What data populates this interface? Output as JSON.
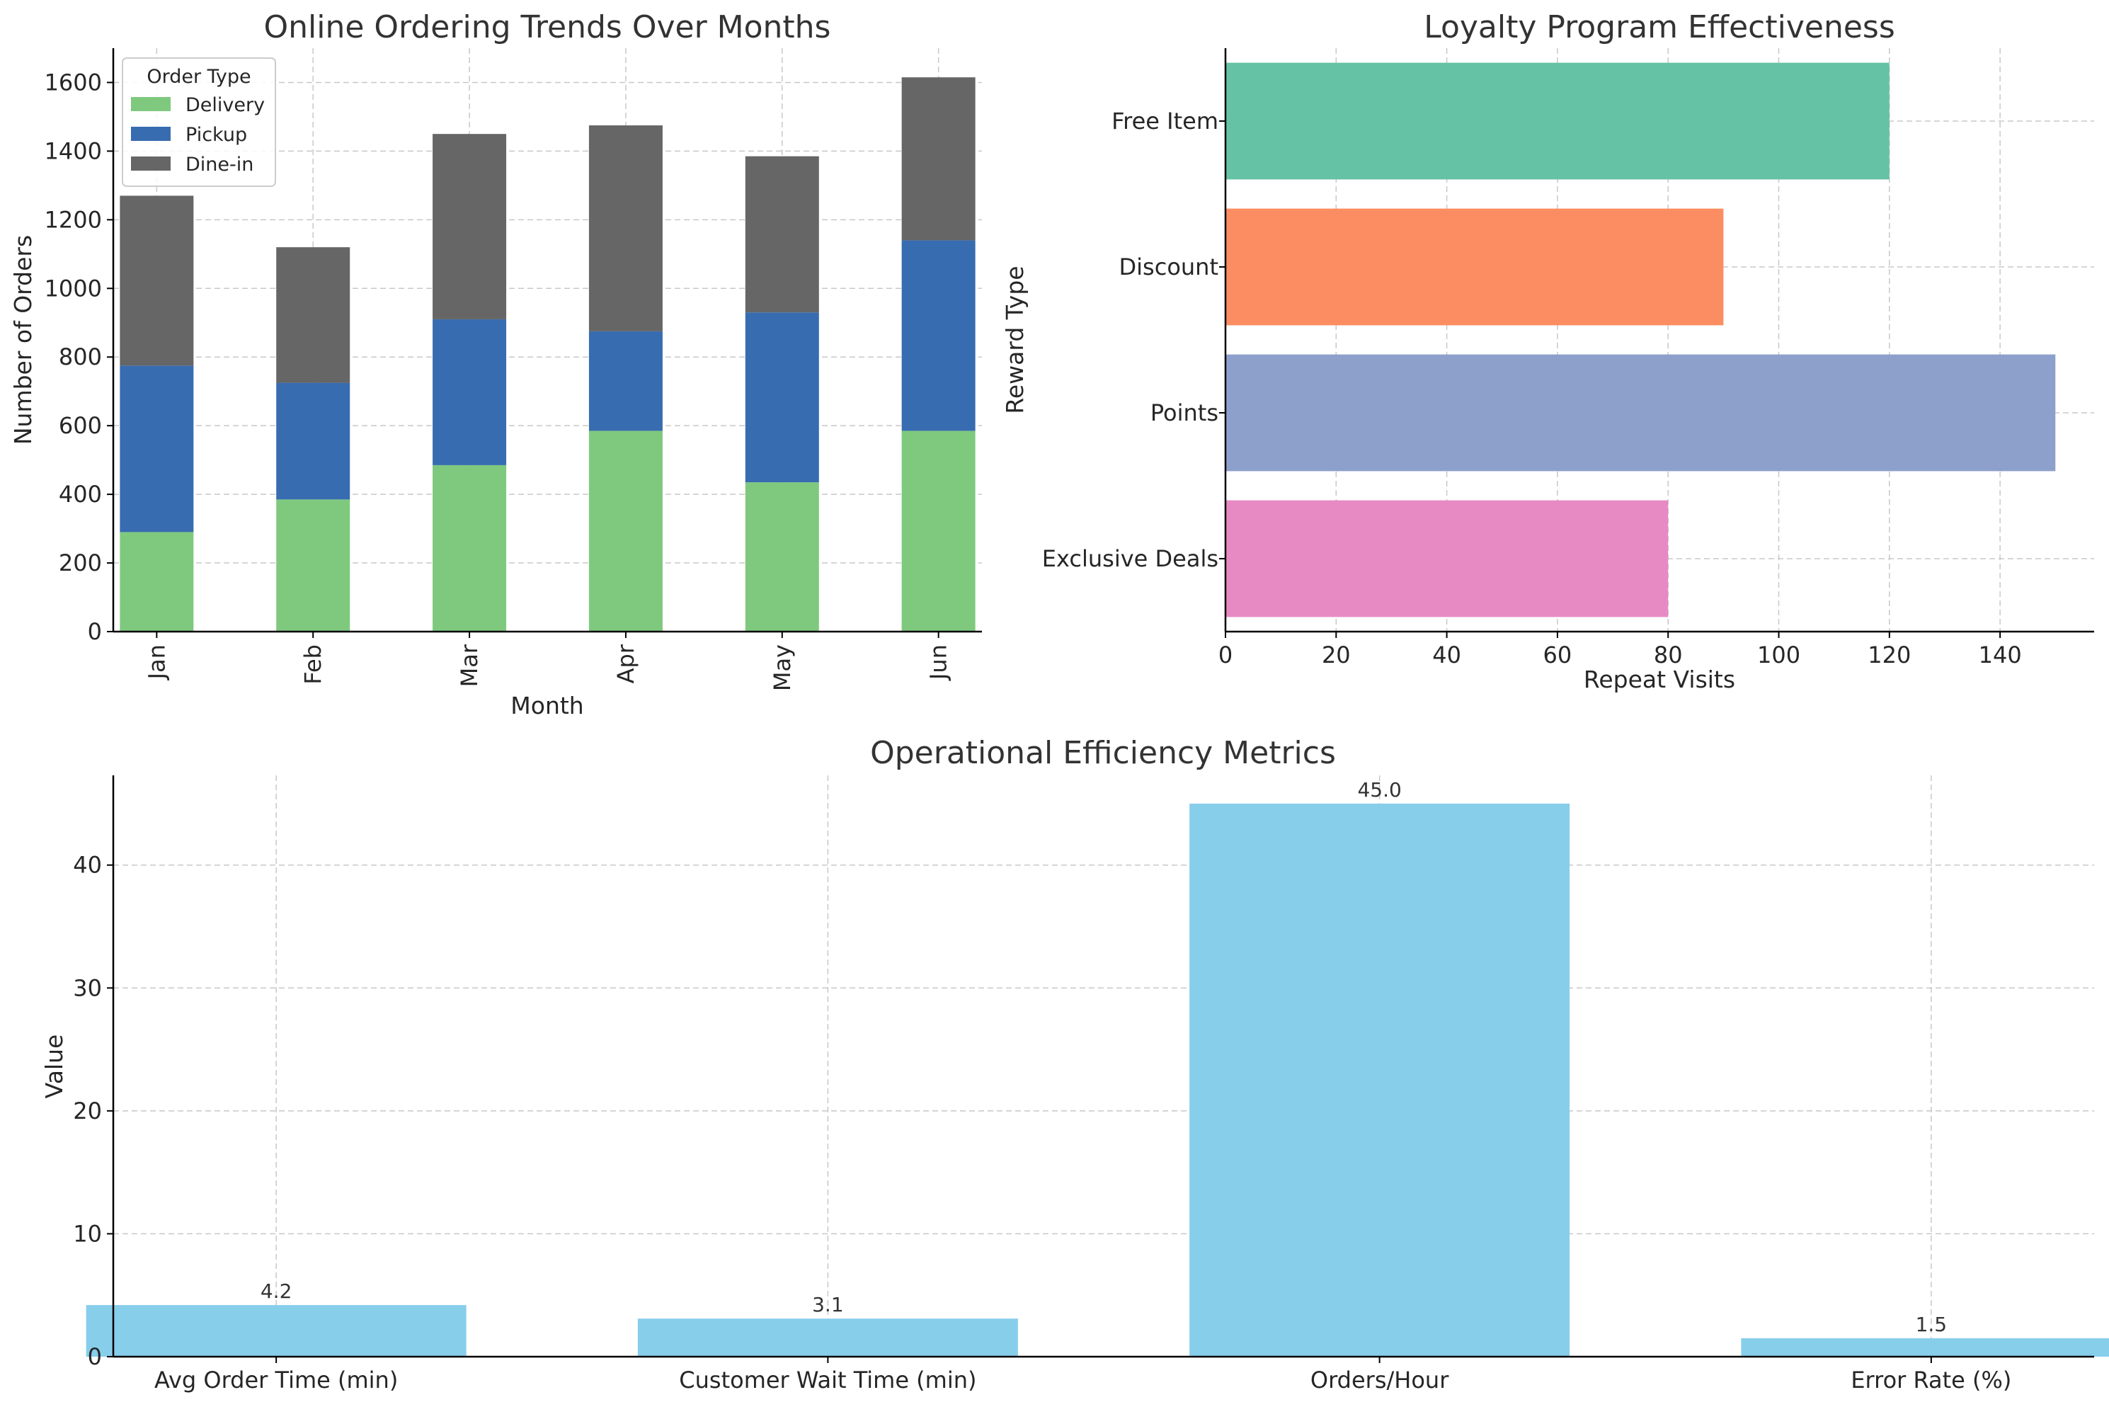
{
  "chart_data": [
    {
      "id": "ordering",
      "type": "bar",
      "stacked": true,
      "title": "Online Ordering Trends Over Months",
      "xlabel": "Month",
      "ylabel": "Number of Orders",
      "categories": [
        "Jan",
        "Feb",
        "Mar",
        "Apr",
        "May",
        "Jun"
      ],
      "series": [
        {
          "name": "Delivery",
          "color": "#7fc97f",
          "values": [
            290,
            385,
            485,
            585,
            435,
            585
          ]
        },
        {
          "name": "Pickup",
          "color": "#386cb0",
          "values": [
            485,
            340,
            425,
            290,
            495,
            555
          ]
        },
        {
          "name": "Dine-in",
          "color": "#666666",
          "values": [
            495,
            395,
            540,
            600,
            455,
            475
          ]
        }
      ],
      "ylim": [
        0,
        1700
      ],
      "yticks": [
        0,
        200,
        400,
        600,
        800,
        1000,
        1200,
        1400,
        1600
      ],
      "legend": {
        "title": "Order Type",
        "placement": "top-left"
      },
      "grid": true
    },
    {
      "id": "loyalty",
      "type": "bar",
      "orientation": "horizontal",
      "title": "Loyalty Program Effectiveness",
      "xlabel": "Repeat Visits",
      "ylabel": "Reward Type",
      "categories": [
        "Free Item",
        "Discount",
        "Points",
        "Exclusive Deals"
      ],
      "values": [
        120,
        90,
        150,
        80
      ],
      "colors": [
        "#66c2a5",
        "#fc8d62",
        "#8da0cb",
        "#e78ac3"
      ],
      "xlim": [
        0,
        157
      ],
      "xticks": [
        0,
        20,
        40,
        60,
        80,
        100,
        120,
        140
      ],
      "grid": true
    },
    {
      "id": "efficiency",
      "type": "bar",
      "title": "Operational Efficiency Metrics",
      "xlabel": "",
      "ylabel": "Value",
      "categories": [
        "Avg Order Time (min)",
        "Customer Wait Time (min)",
        "Orders/Hour",
        "Error Rate (%)"
      ],
      "values": [
        4.2,
        3.1,
        45.0,
        1.5
      ],
      "data_labels": [
        "4.2",
        "3.1",
        "45.0",
        "1.5"
      ],
      "color": "#87ceeb",
      "ylim": [
        0,
        47.3
      ],
      "yticks": [
        0,
        10,
        20,
        30,
        40
      ],
      "grid": true
    }
  ]
}
